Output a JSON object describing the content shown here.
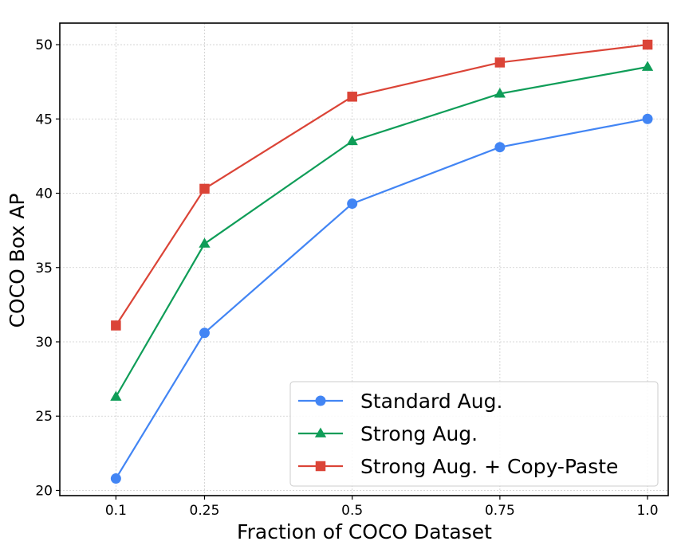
{
  "chart_data": {
    "type": "line",
    "title": "",
    "xlabel": "Fraction of COCO Dataset",
    "ylabel": "COCO Box AP",
    "x": [
      0.1,
      0.25,
      0.5,
      0.75,
      1.0
    ],
    "x_tick_labels": [
      "0.1",
      "0.25",
      "0.5",
      "0.75",
      "1.0"
    ],
    "y_ticks": [
      20,
      25,
      30,
      35,
      40,
      45,
      50
    ],
    "y_tick_labels": [
      "20",
      "25",
      "30",
      "35",
      "40",
      "45",
      "50"
    ],
    "xlim": [
      0.005,
      1.035
    ],
    "ylim": [
      19.65,
      51.45
    ],
    "grid": true,
    "legend_position": "bottom-right",
    "series": [
      {
        "name": "Standard Aug.",
        "marker": "circle",
        "color": "#4285f4",
        "values": [
          20.8,
          30.6,
          39.3,
          43.1,
          45.0
        ]
      },
      {
        "name": "Strong Aug.",
        "marker": "triangle",
        "color": "#0f9d58",
        "values": [
          26.3,
          36.6,
          43.5,
          46.7,
          48.5
        ]
      },
      {
        "name": "Strong Aug. + Copy-Paste",
        "marker": "square",
        "color": "#db4437",
        "values": [
          31.1,
          40.3,
          46.5,
          48.8,
          50.0
        ]
      }
    ]
  }
}
